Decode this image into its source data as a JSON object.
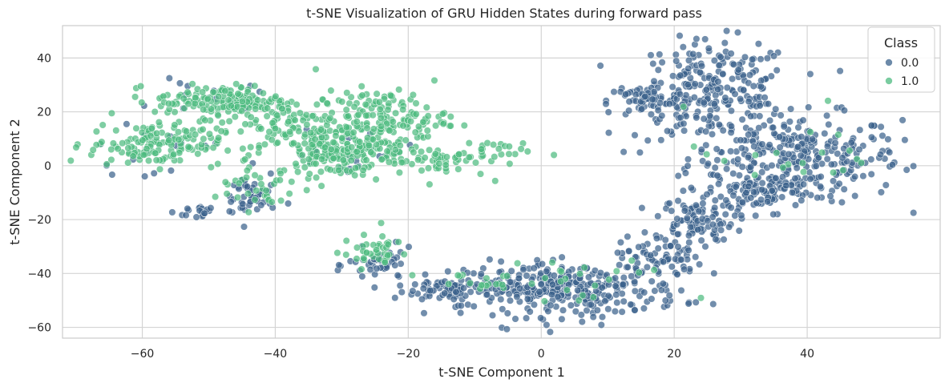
{
  "chart_data": {
    "type": "scatter",
    "title": "t-SNE Visualization of GRU Hidden States during forward pass",
    "xlabel": "t-SNE Component 1",
    "ylabel": "t-SNE Component 2",
    "xlim": [
      -72,
      60
    ],
    "ylim": [
      -64,
      52
    ],
    "xticks": [
      -60,
      -40,
      -20,
      0,
      20,
      40
    ],
    "yticks": [
      -60,
      -40,
      -20,
      0,
      20,
      40
    ],
    "xtick_labels": [
      "−60",
      "−40",
      "−20",
      "0",
      "20",
      "40"
    ],
    "ytick_labels": [
      "−60",
      "−40",
      "−20",
      "0",
      "20",
      "40"
    ],
    "grid": true,
    "legend": {
      "title": "Class",
      "position": "upper right"
    },
    "series": [
      {
        "name": "0.0",
        "color": "#3b638c",
        "clusters": [
          {
            "cx": 38,
            "cy": 3,
            "sx": 8,
            "sy": 8,
            "n": 320
          },
          {
            "cx": 26,
            "cy": 28,
            "sx": 6,
            "sy": 9,
            "n": 240
          },
          {
            "cx": 16,
            "cy": 24,
            "sx": 3,
            "sy": 3,
            "n": 60
          },
          {
            "cx": 33,
            "cy": -10,
            "sx": 4,
            "sy": 3,
            "n": 80
          },
          {
            "cx": 23,
            "cy": -20,
            "sx": 3,
            "sy": 4,
            "n": 90
          },
          {
            "cx": 18,
            "cy": -34,
            "sx": 3,
            "sy": 4,
            "n": 70
          },
          {
            "cx": 5,
            "cy": -46,
            "sx": 8,
            "sy": 5,
            "n": 300
          },
          {
            "cx": -12,
            "cy": -46,
            "sx": 5,
            "sy": 2.5,
            "n": 100
          },
          {
            "cx": -24,
            "cy": -37,
            "sx": 2.5,
            "sy": 3,
            "n": 40
          },
          {
            "cx": -44,
            "cy": -12,
            "sx": 2,
            "sy": 5,
            "n": 45
          },
          {
            "cx": -51,
            "cy": -17,
            "sx": 2,
            "sy": 1.5,
            "n": 20
          },
          {
            "cx": -50,
            "cy": 25,
            "sx": 4,
            "sy": 3,
            "n": 15
          },
          {
            "cx": -60,
            "cy": 5,
            "sx": 5,
            "sy": 4,
            "n": 15
          },
          {
            "cx": -28,
            "cy": 5,
            "sx": 6,
            "sy": 5,
            "n": 20
          }
        ]
      },
      {
        "name": "1.0",
        "color": "#4dbb80",
        "clusters": [
          {
            "cx": -58,
            "cy": 8,
            "sx": 5,
            "sy": 4,
            "n": 150
          },
          {
            "cx": -48,
            "cy": 24,
            "sx": 5,
            "sy": 3,
            "n": 150
          },
          {
            "cx": -38,
            "cy": 15,
            "sx": 4,
            "sy": 6,
            "n": 80
          },
          {
            "cx": -30,
            "cy": 6,
            "sx": 5,
            "sy": 5,
            "n": 200
          },
          {
            "cx": -24,
            "cy": 18,
            "sx": 5,
            "sy": 5,
            "n": 150
          },
          {
            "cx": -16,
            "cy": 2,
            "sx": 4,
            "sy": 3,
            "n": 50
          },
          {
            "cx": -8,
            "cy": 6,
            "sx": 3,
            "sy": 2,
            "n": 20
          },
          {
            "cx": -43,
            "cy": -8,
            "sx": 3,
            "sy": 4,
            "n": 30
          },
          {
            "cx": -25,
            "cy": -32,
            "sx": 2.5,
            "sy": 3,
            "n": 40
          },
          {
            "cx": -12,
            "cy": -42,
            "sx": 4,
            "sy": 2,
            "n": 15
          },
          {
            "cx": 5,
            "cy": -45,
            "sx": 8,
            "sy": 5,
            "n": 25
          },
          {
            "cx": 38,
            "cy": 5,
            "sx": 8,
            "sy": 8,
            "n": 20
          }
        ]
      }
    ]
  }
}
